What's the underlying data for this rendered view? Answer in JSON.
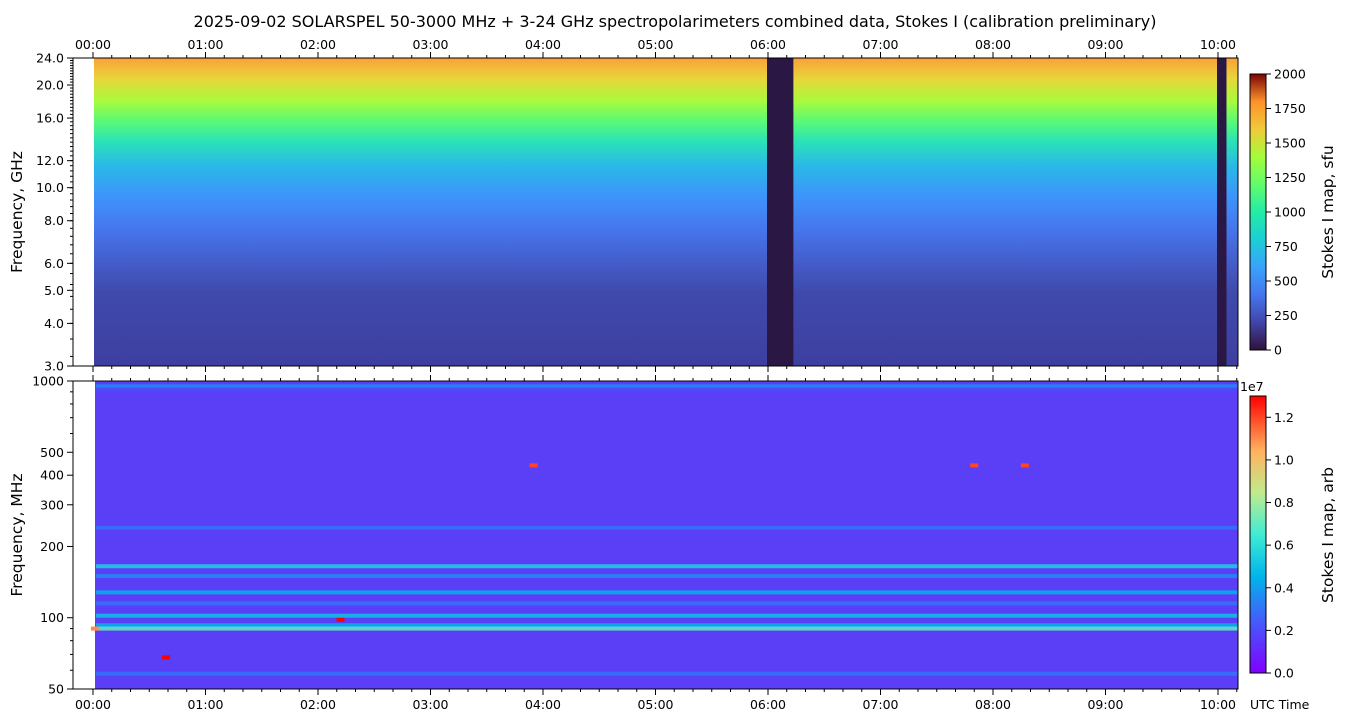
{
  "chart_data": [
    {
      "type": "heatmap",
      "panel": "top",
      "title": "2025-09-02  SOLARSPEL  50-3000 MHz  +  3-24 GHz  spectropolarimeters combined data,  Stokes I  (calibration preliminary)",
      "xlabel": "",
      "ylabel": "Frequency, GHz",
      "x_ticks": [
        "00:00",
        "01:00",
        "02:00",
        "03:00",
        "04:00",
        "05:00",
        "06:00",
        "07:00",
        "08:00",
        "09:00",
        "10:00"
      ],
      "y_scale": "log",
      "ylim": [
        3.0,
        24.0
      ],
      "y_ticks": [
        3.0,
        4.0,
        5.0,
        6.0,
        8.0,
        10.0,
        12.0,
        16.0,
        20.0,
        24.0
      ],
      "y_tick_labels": [
        "3.0",
        "4.0",
        "5.0",
        "6.0",
        "8.0",
        "10.0",
        "12.0",
        "16.0",
        "20.0",
        "24.0"
      ],
      "colorbar": {
        "label": "Stokes I map, sfu",
        "range": [
          0,
          2000
        ],
        "ticks": [
          0,
          250,
          500,
          750,
          1000,
          1250,
          1500,
          1750,
          2000
        ],
        "tick_labels": [
          "0",
          "250",
          "500",
          "750",
          "1000",
          "1250",
          "1500",
          "1750",
          "2000"
        ],
        "colormap": "turbo"
      },
      "profile_by_frequency_ghz": [
        {
          "f": 3.0,
          "v": 260
        },
        {
          "f": 5.0,
          "v": 280
        },
        {
          "f": 6.0,
          "v": 320
        },
        {
          "f": 8.0,
          "v": 400
        },
        {
          "f": 10.0,
          "v": 480
        },
        {
          "f": 12.0,
          "v": 560
        },
        {
          "f": 14.0,
          "v": 660
        },
        {
          "f": 16.0,
          "v": 780
        },
        {
          "f": 18.0,
          "v": 1000
        },
        {
          "f": 20.0,
          "v": 1150
        },
        {
          "f": 22.0,
          "v": 1350
        },
        {
          "f": 24.0,
          "v": 1450
        }
      ],
      "data_gaps_utc": [
        [
          "06:00",
          "06:13"
        ],
        [
          "10:00",
          "10:04"
        ]
      ]
    },
    {
      "type": "heatmap",
      "panel": "bottom",
      "xlabel": "UTC Time",
      "ylabel": "Frequency, MHz",
      "x_ticks": [
        "00:00",
        "01:00",
        "02:00",
        "03:00",
        "04:00",
        "05:00",
        "06:00",
        "07:00",
        "08:00",
        "09:00",
        "10:00"
      ],
      "y_scale": "log",
      "ylim": [
        50,
        1000
      ],
      "y_ticks": [
        50,
        100,
        200,
        300,
        400,
        500,
        1000
      ],
      "y_tick_labels": [
        "50",
        "100",
        "200",
        "300",
        "400",
        "500",
        "1000"
      ],
      "colorbar": {
        "label": "Stokes I map, arb",
        "multiplier": "1e7",
        "range": [
          0,
          1.3
        ],
        "ticks": [
          0.0,
          0.2,
          0.4,
          0.6,
          0.8,
          1.0,
          1.2
        ],
        "tick_labels": [
          "0.0",
          "0.2",
          "0.4",
          "0.6",
          "0.8",
          "1.0",
          "1.2"
        ],
        "colormap": "rainbow"
      },
      "background_level": 0.12,
      "bands_mhz": [
        {
          "f": 950,
          "v": 0.35
        },
        {
          "f": 920,
          "v": 0.2
        },
        {
          "f": 240,
          "v": 0.3
        },
        {
          "f": 165,
          "v": 0.55
        },
        {
          "f": 150,
          "v": 0.35
        },
        {
          "f": 128,
          "v": 0.45
        },
        {
          "f": 115,
          "v": 0.3
        },
        {
          "f": 102,
          "v": 0.5
        },
        {
          "f": 93,
          "v": 0.45
        },
        {
          "f": 90,
          "v": 0.7
        },
        {
          "f": 58,
          "v": 0.3
        }
      ],
      "bright_spots": [
        {
          "t": "00:39",
          "f": 68,
          "v": 1.3
        },
        {
          "t": "02:12",
          "f": 98,
          "v": 1.3
        },
        {
          "t": "03:55",
          "f": 440,
          "v": 1.2
        },
        {
          "t": "07:50",
          "f": 440,
          "v": 1.2
        },
        {
          "t": "08:17",
          "f": 440,
          "v": 1.2
        },
        {
          "t": "00:01",
          "f": 90,
          "v": 1.1
        }
      ]
    }
  ]
}
